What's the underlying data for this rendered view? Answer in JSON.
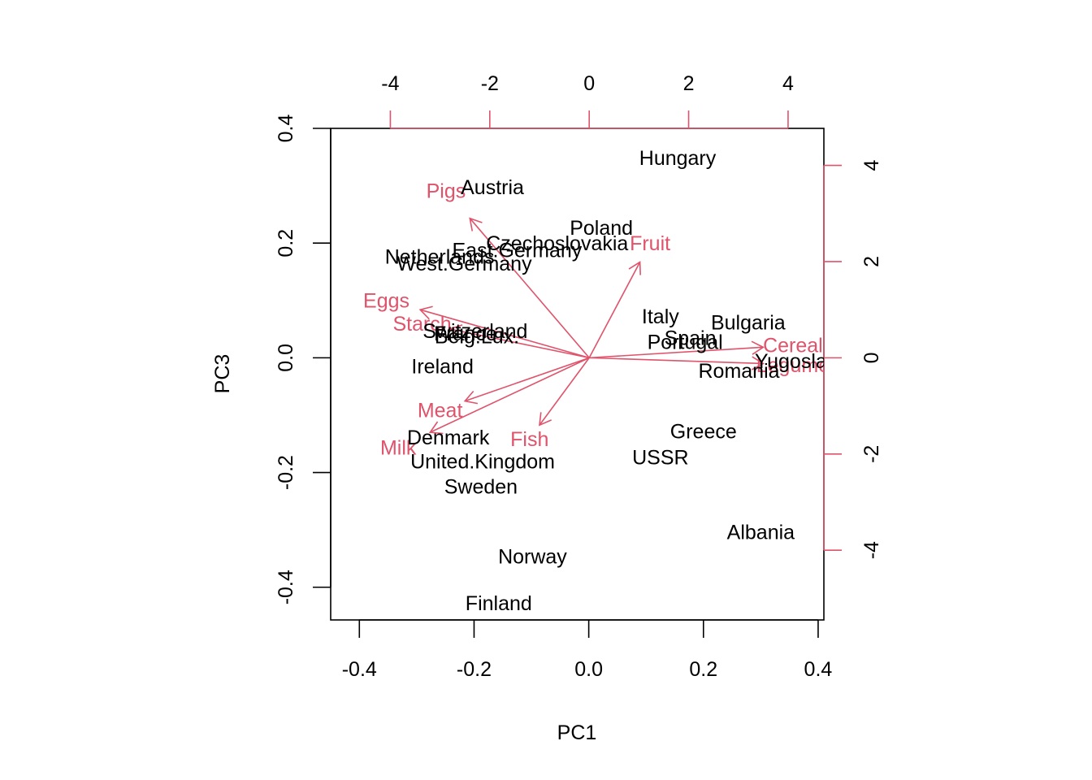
{
  "chart_data": {
    "type": "scatter",
    "subtype": "biplot",
    "xlabel": "PC1",
    "ylabel": "PC3",
    "xlim": [
      -0.45,
      0.41
    ],
    "ylim": [
      -0.457,
      0.4
    ],
    "x_ticks": [
      -0.4,
      -0.2,
      0.0,
      0.2,
      0.4
    ],
    "x_tick_labels": [
      "-0.4",
      "-0.2",
      "0.0",
      "0.2",
      "0.4"
    ],
    "y_ticks": [
      -0.4,
      -0.2,
      0.0,
      0.2,
      0.4
    ],
    "y_tick_labels": [
      "-0.4",
      "-0.2",
      "0.0",
      "0.2",
      "0.4"
    ],
    "top_ticks": [
      -4,
      -2,
      0,
      2,
      4
    ],
    "top_tick_labels": [
      "-4",
      "-2",
      "0",
      "2",
      "4"
    ],
    "right_ticks": [
      -4,
      -2,
      0,
      2,
      4
    ],
    "right_tick_labels": [
      "-4",
      "-2",
      "0",
      "2",
      "4"
    ],
    "secondary_axis_range_x": [
      -5.2,
      4.72
    ],
    "secondary_axis_range_y": [
      -5.45,
      4.77
    ],
    "secondary_axis_color": "#DF536B",
    "grid": false,
    "points": [
      {
        "label": "Hungary",
        "x": 0.155,
        "y": 0.349
      },
      {
        "label": "Austria",
        "x": -0.168,
        "y": 0.298
      },
      {
        "label": "Poland",
        "x": 0.022,
        "y": 0.227
      },
      {
        "label": "Czechoslovakia",
        "x": -0.055,
        "y": 0.2
      },
      {
        "label": "East.Germany",
        "x": -0.125,
        "y": 0.188
      },
      {
        "label": "Netherlands",
        "x": -0.26,
        "y": 0.177
      },
      {
        "label": "West.Germany",
        "x": -0.217,
        "y": 0.165
      },
      {
        "label": "Italy",
        "x": 0.125,
        "y": 0.073
      },
      {
        "label": "Bulgaria",
        "x": 0.278,
        "y": 0.062
      },
      {
        "label": "Switzerland",
        "x": -0.198,
        "y": 0.047
      },
      {
        "label": "France",
        "x": -0.215,
        "y": 0.043
      },
      {
        "label": "Belg.Lux.",
        "x": -0.195,
        "y": 0.038
      },
      {
        "label": "Spain",
        "x": 0.177,
        "y": 0.035
      },
      {
        "label": "Portugal",
        "x": 0.168,
        "y": 0.028
      },
      {
        "label": "Yugoslavia",
        "x": 0.375,
        "y": -0.005
      },
      {
        "label": "Romania",
        "x": 0.262,
        "y": -0.022
      },
      {
        "label": "Ireland",
        "x": -0.255,
        "y": -0.014
      },
      {
        "label": "Denmark",
        "x": -0.245,
        "y": -0.138
      },
      {
        "label": "Greece",
        "x": 0.2,
        "y": -0.128
      },
      {
        "label": "United.Kingdom",
        "x": -0.185,
        "y": -0.18
      },
      {
        "label": "USSR",
        "x": 0.125,
        "y": -0.173
      },
      {
        "label": "Sweden",
        "x": -0.188,
        "y": -0.224
      },
      {
        "label": "Albania",
        "x": 0.3,
        "y": -0.303
      },
      {
        "label": "Norway",
        "x": -0.098,
        "y": -0.346
      },
      {
        "label": "Finland",
        "x": -0.157,
        "y": -0.427
      }
    ],
    "loadings": [
      {
        "label": "Pigs",
        "x": -2.4,
        "y": 2.9
      },
      {
        "label": "Fruit",
        "x": 1.02,
        "y": 1.99
      },
      {
        "label": "Eggs",
        "x": -3.4,
        "y": 1.0
      },
      {
        "label": "Starch",
        "x": -2.8,
        "y": 0.6
      },
      {
        "label": "Cereals",
        "x": 3.5,
        "y": 0.22
      },
      {
        "label": "Legumes",
        "x": 3.5,
        "y": -0.12
      },
      {
        "label": "Meat",
        "x": -2.5,
        "y": -0.9
      },
      {
        "label": "Milk",
        "x": -3.2,
        "y": -1.55
      },
      {
        "label": "Fish",
        "x": -1.0,
        "y": -1.4
      }
    ]
  }
}
